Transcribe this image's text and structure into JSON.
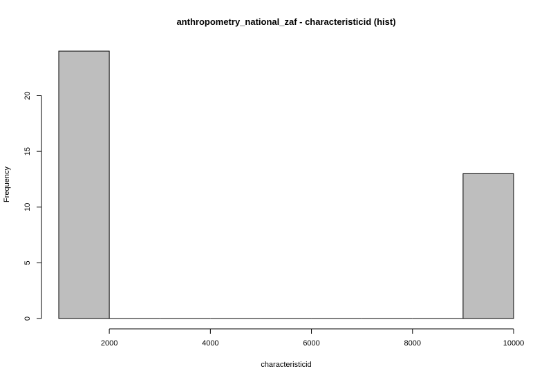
{
  "chart_data": {
    "type": "bar",
    "title": "anthropometry_national_zaf - characteristicid (hist)",
    "xlabel": "characteristicid",
    "ylabel": "Frequency",
    "bins": [
      {
        "start": 1000,
        "end": 2000,
        "count": 24
      },
      {
        "start": 2000,
        "end": 3000,
        "count": 0
      },
      {
        "start": 3000,
        "end": 4000,
        "count": 0
      },
      {
        "start": 4000,
        "end": 5000,
        "count": 0
      },
      {
        "start": 5000,
        "end": 6000,
        "count": 0
      },
      {
        "start": 6000,
        "end": 7000,
        "count": 0
      },
      {
        "start": 7000,
        "end": 8000,
        "count": 0
      },
      {
        "start": 8000,
        "end": 9000,
        "count": 0
      },
      {
        "start": 9000,
        "end": 10000,
        "count": 13
      }
    ],
    "x_ticks": [
      2000,
      4000,
      6000,
      8000,
      10000
    ],
    "y_ticks": [
      0,
      5,
      10,
      15,
      20
    ],
    "xlim": [
      1000,
      10000
    ],
    "ylim": [
      0,
      24
    ],
    "bar_color": "#bebebe",
    "grid": false,
    "legend": "none"
  }
}
